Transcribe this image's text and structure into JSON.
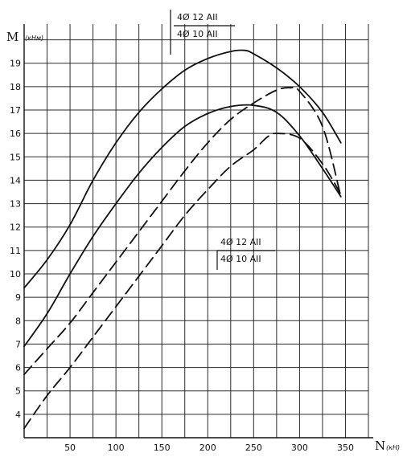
{
  "chart_data": {
    "type": "line",
    "title": "",
    "xlabel": "N",
    "xunit": "(кН)",
    "ylabel": "M",
    "yunit": "(кНм)",
    "xlim": [
      0,
      375
    ],
    "ylim": [
      3,
      20.5
    ],
    "xticks": [
      50,
      100,
      150,
      200,
      250,
      300,
      350
    ],
    "yticks": [
      4,
      5,
      6,
      7,
      8,
      9,
      10,
      11,
      12,
      13,
      14,
      15,
      16,
      17,
      18,
      19
    ],
    "grid": true,
    "legend_top": [
      "4Ø 12 AII",
      "4Ø 10 AII"
    ],
    "legend_mid": [
      "4Ø 12 AII",
      "4Ø 10 AII"
    ],
    "series": [
      {
        "style": "solid",
        "x": [
          0,
          25,
          50,
          75,
          100,
          125,
          150,
          175,
          200,
          225,
          240,
          250,
          275,
          300,
          325,
          345
        ],
        "y": [
          9.4,
          10.6,
          12.1,
          14.0,
          15.6,
          16.9,
          17.9,
          18.7,
          19.2,
          19.5,
          19.55,
          19.4,
          18.8,
          18.0,
          16.9,
          15.6
        ]
      },
      {
        "style": "solid",
        "x": [
          0,
          25,
          50,
          75,
          100,
          125,
          150,
          175,
          200,
          225,
          250,
          275,
          300,
          325,
          345
        ],
        "y": [
          6.9,
          8.3,
          10.0,
          11.6,
          13.0,
          14.3,
          15.4,
          16.3,
          16.85,
          17.15,
          17.2,
          16.9,
          15.9,
          14.5,
          13.3
        ]
      },
      {
        "style": "dashed",
        "x": [
          0,
          25,
          50,
          75,
          100,
          125,
          150,
          175,
          200,
          225,
          250,
          275,
          290,
          300,
          325,
          345
        ],
        "y": [
          5.7,
          6.8,
          7.9,
          9.2,
          10.5,
          11.8,
          13.1,
          14.4,
          15.6,
          16.6,
          17.3,
          17.85,
          17.95,
          17.8,
          16.3,
          13.3
        ]
      },
      {
        "style": "dashed",
        "x": [
          0,
          25,
          50,
          75,
          100,
          125,
          150,
          175,
          200,
          225,
          250,
          265,
          275,
          300,
          325,
          345
        ],
        "y": [
          3.4,
          4.8,
          6.0,
          7.3,
          8.6,
          9.9,
          11.2,
          12.5,
          13.6,
          14.6,
          15.3,
          15.85,
          16.0,
          15.8,
          14.7,
          13.4
        ]
      }
    ]
  }
}
